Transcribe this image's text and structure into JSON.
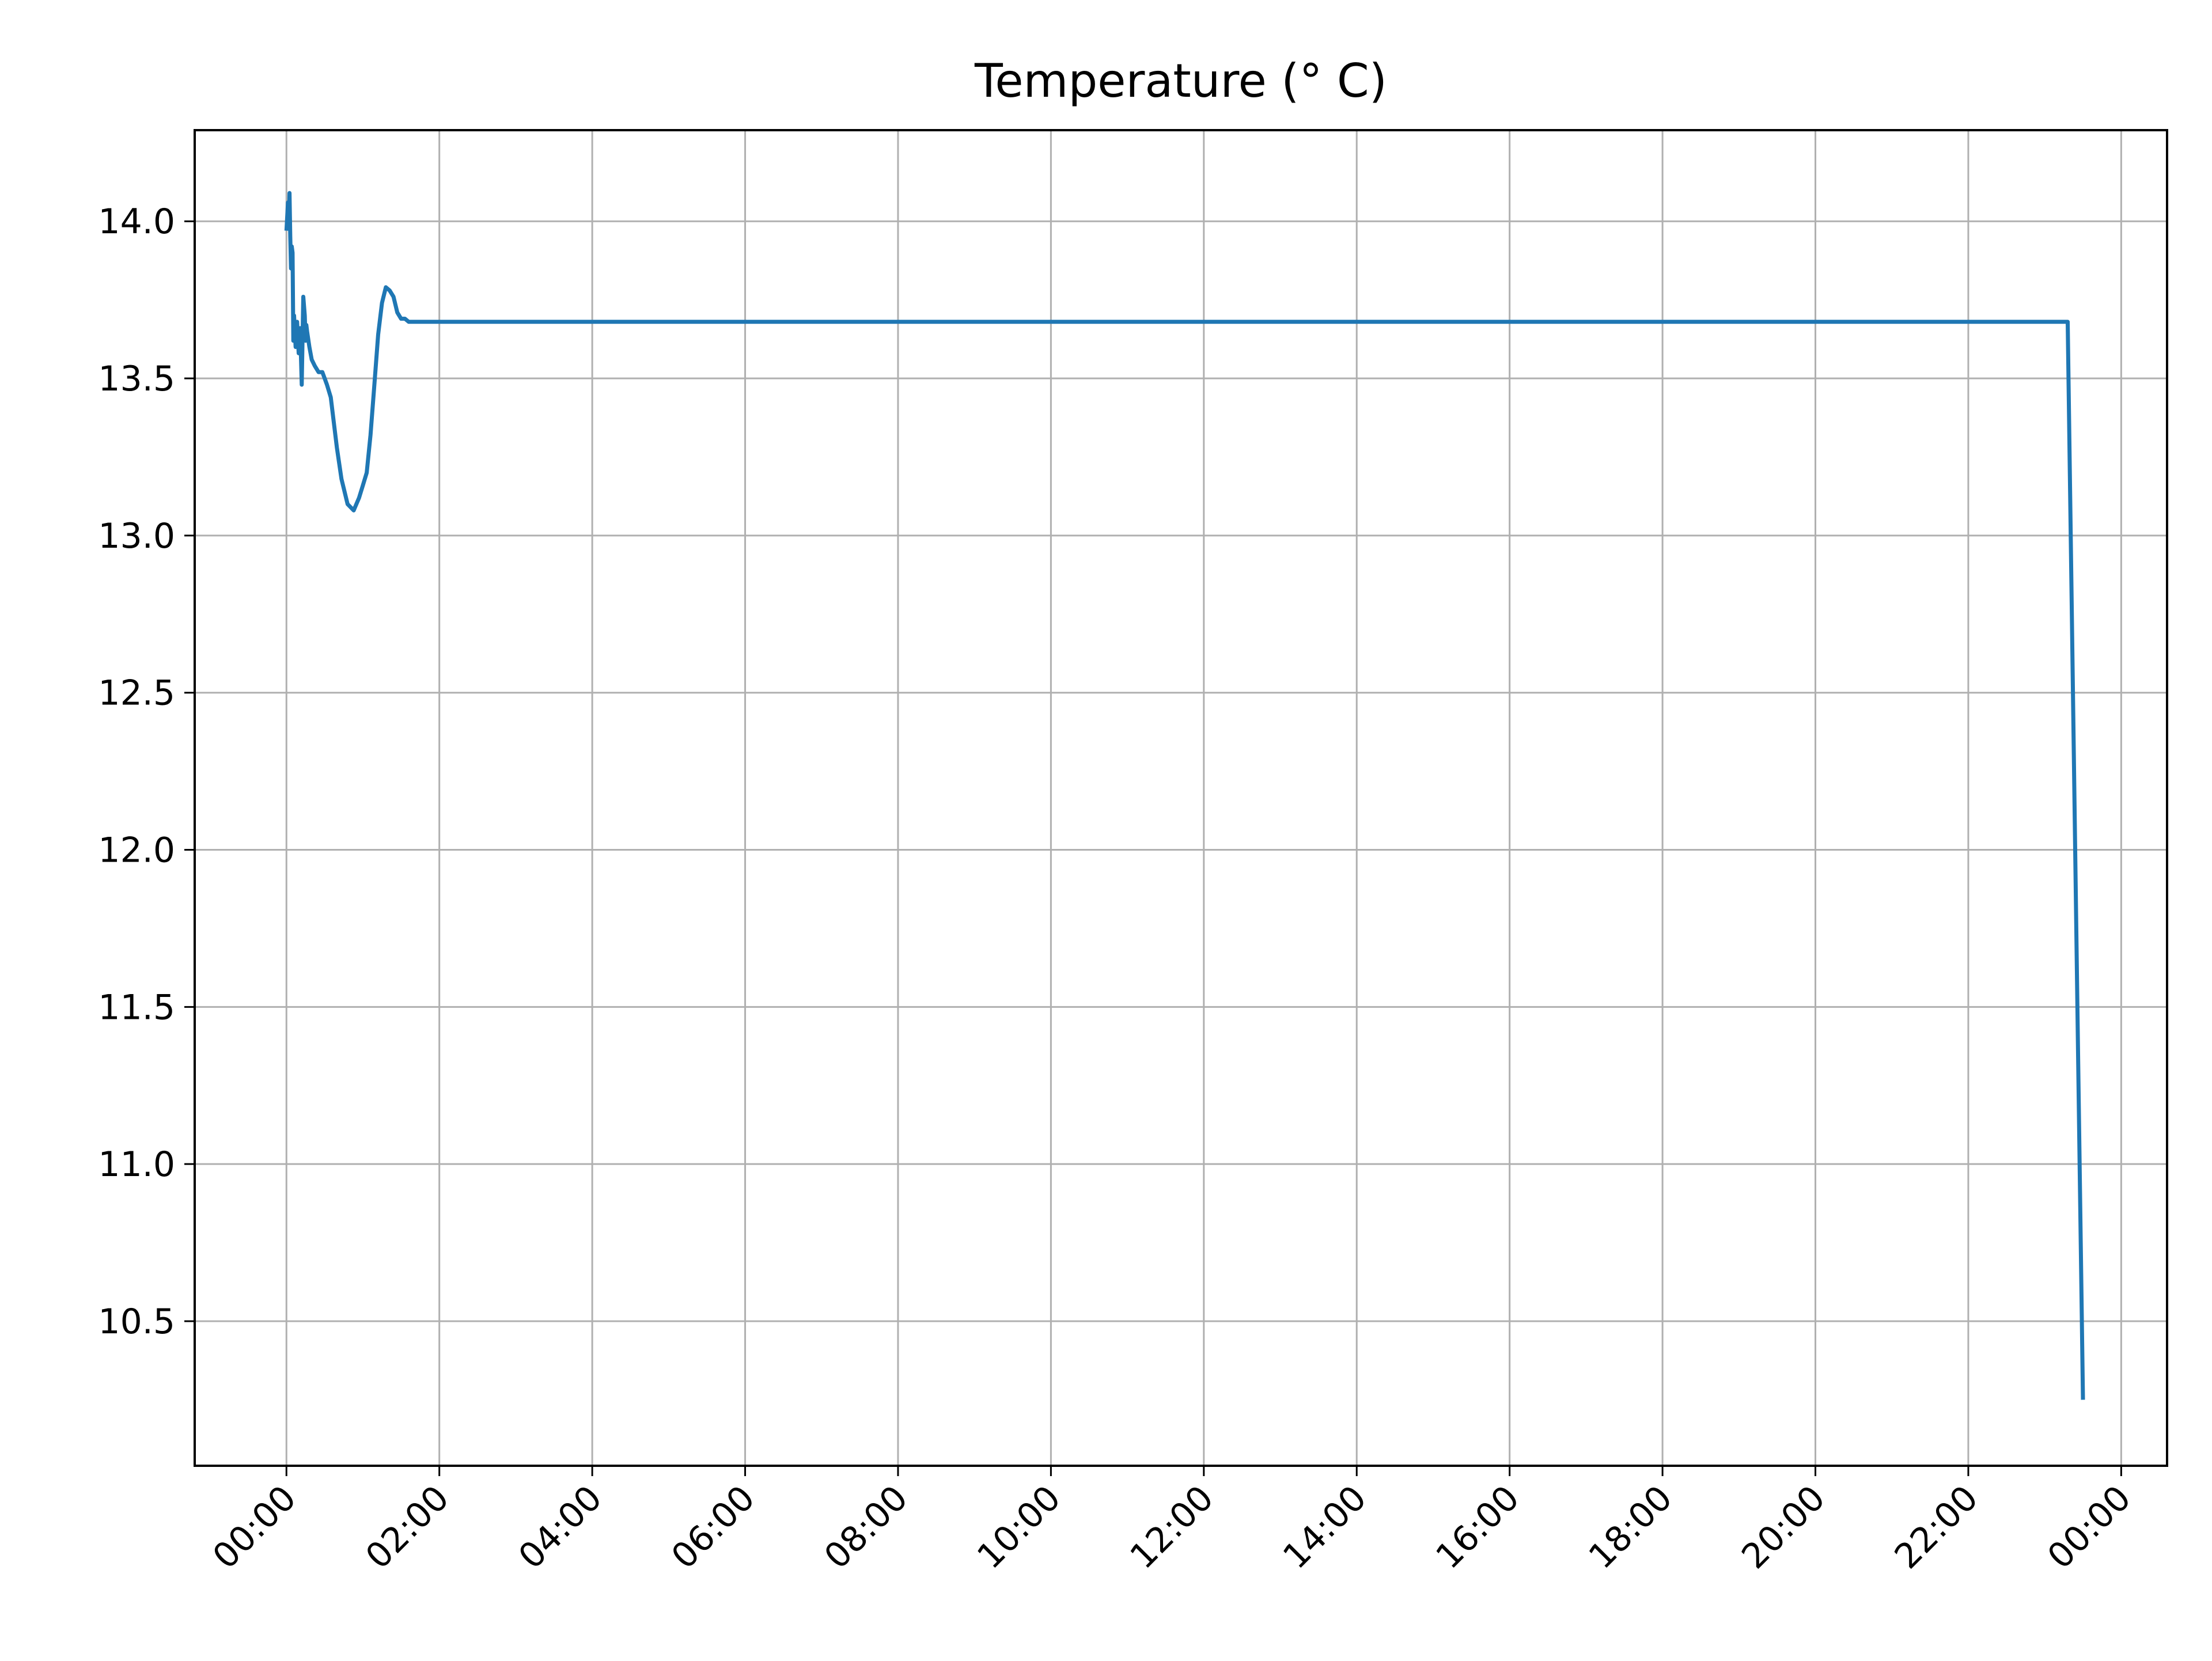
{
  "chart_data": {
    "type": "line",
    "title": "Temperature (° C)",
    "xlabel": "",
    "ylabel": "",
    "grid": true,
    "legend": "none",
    "x_tick_labels": [
      "00:00",
      "02:00",
      "04:00",
      "06:00",
      "08:00",
      "10:00",
      "12:00",
      "14:00",
      "16:00",
      "18:00",
      "20:00",
      "22:00",
      "00:00"
    ],
    "x_tick_hours": [
      0,
      2,
      4,
      6,
      8,
      10,
      12,
      14,
      16,
      18,
      20,
      22,
      24
    ],
    "xlim_hours": [
      -1.2,
      24.6
    ],
    "y_ticks": [
      10.5,
      11.0,
      11.5,
      12.0,
      12.5,
      13.0,
      13.5,
      14.0
    ],
    "y_tick_labels": [
      "10.5",
      "11.0",
      "11.5",
      "12.0",
      "12.5",
      "13.0",
      "13.5",
      "14.0"
    ],
    "ylim": [
      10.04,
      14.29
    ],
    "series": [
      {
        "color": "#1f77b4",
        "x_hours": [
          0.0,
          0.02,
          0.03,
          0.04,
          0.05,
          0.06,
          0.07,
          0.08,
          0.09,
          0.1,
          0.12,
          0.14,
          0.16,
          0.18,
          0.2,
          0.22,
          0.24,
          0.25,
          0.26,
          0.27,
          0.3,
          0.33,
          0.37,
          0.42,
          0.47,
          0.53,
          0.58,
          0.62,
          0.66,
          0.72,
          0.8,
          0.88,
          0.95,
          1.0,
          1.05,
          1.1,
          1.15,
          1.2,
          1.25,
          1.3,
          1.35,
          1.4,
          1.45,
          1.5,
          1.55,
          1.6,
          1.65,
          1.7,
          1.75,
          2.0,
          4.0,
          8.0,
          12.0,
          16.0,
          20.0,
          23.0,
          23.3,
          23.5
        ],
        "values": [
          13.97,
          14.06,
          13.98,
          14.09,
          13.95,
          13.85,
          13.92,
          13.9,
          13.62,
          13.7,
          13.6,
          13.68,
          13.58,
          13.66,
          13.48,
          13.76,
          13.7,
          13.62,
          13.67,
          13.65,
          13.6,
          13.56,
          13.54,
          13.52,
          13.52,
          13.48,
          13.44,
          13.36,
          13.28,
          13.18,
          13.1,
          13.08,
          13.12,
          13.16,
          13.2,
          13.32,
          13.48,
          13.64,
          13.74,
          13.79,
          13.78,
          13.76,
          13.71,
          13.69,
          13.69,
          13.68,
          13.68,
          13.68,
          13.68,
          13.68,
          13.68,
          13.68,
          13.68,
          13.68,
          13.68,
          13.68,
          13.68,
          10.25
        ]
      }
    ]
  }
}
